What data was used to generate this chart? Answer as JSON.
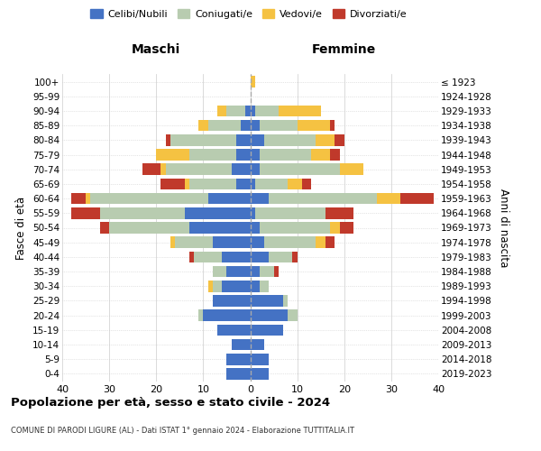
{
  "age_groups": [
    "0-4",
    "5-9",
    "10-14",
    "15-19",
    "20-24",
    "25-29",
    "30-34",
    "35-39",
    "40-44",
    "45-49",
    "50-54",
    "55-59",
    "60-64",
    "65-69",
    "70-74",
    "75-79",
    "80-84",
    "85-89",
    "90-94",
    "95-99",
    "100+"
  ],
  "birth_years": [
    "2019-2023",
    "2014-2018",
    "2009-2013",
    "2004-2008",
    "1999-2003",
    "1994-1998",
    "1989-1993",
    "1984-1988",
    "1979-1983",
    "1974-1978",
    "1969-1973",
    "1964-1968",
    "1959-1963",
    "1954-1958",
    "1949-1953",
    "1944-1948",
    "1939-1943",
    "1934-1938",
    "1929-1933",
    "1924-1928",
    "≤ 1923"
  ],
  "colors": {
    "celibe": "#4472C4",
    "coniugato": "#B8CCB0",
    "vedovo": "#F5C242",
    "divorziato": "#C0392B"
  },
  "males": {
    "celibe": [
      5,
      5,
      4,
      7,
      10,
      8,
      6,
      5,
      6,
      8,
      13,
      14,
      9,
      3,
      4,
      3,
      3,
      2,
      1,
      0,
      0
    ],
    "coniugato": [
      0,
      0,
      0,
      0,
      1,
      0,
      2,
      3,
      6,
      8,
      17,
      18,
      25,
      10,
      14,
      10,
      14,
      7,
      4,
      0,
      0
    ],
    "vedovo": [
      0,
      0,
      0,
      0,
      0,
      0,
      1,
      0,
      0,
      1,
      0,
      0,
      1,
      1,
      1,
      7,
      0,
      2,
      2,
      0,
      0
    ],
    "divorziato": [
      0,
      0,
      0,
      0,
      0,
      0,
      0,
      0,
      1,
      0,
      2,
      6,
      3,
      5,
      4,
      0,
      1,
      0,
      0,
      0,
      0
    ]
  },
  "females": {
    "nubile": [
      4,
      4,
      3,
      7,
      8,
      7,
      2,
      2,
      4,
      3,
      2,
      1,
      4,
      1,
      2,
      2,
      3,
      2,
      1,
      0,
      0
    ],
    "coniugata": [
      0,
      0,
      0,
      0,
      2,
      1,
      2,
      3,
      5,
      11,
      15,
      15,
      23,
      7,
      17,
      11,
      11,
      8,
      5,
      0,
      0
    ],
    "vedova": [
      0,
      0,
      0,
      0,
      0,
      0,
      0,
      0,
      0,
      2,
      2,
      0,
      5,
      3,
      5,
      4,
      4,
      7,
      9,
      0,
      1
    ],
    "divorziata": [
      0,
      0,
      0,
      0,
      0,
      0,
      0,
      1,
      1,
      2,
      3,
      6,
      7,
      2,
      0,
      2,
      2,
      1,
      0,
      0,
      0
    ]
  },
  "xlim": 40,
  "title": "Popolazione per età, sesso e stato civile - 2024",
  "subtitle": "COMUNE DI PARODI LIGURE (AL) - Dati ISTAT 1° gennaio 2024 - Elaborazione TUTTITALIA.IT",
  "ylabel_left": "Fasce di età",
  "ylabel_right": "Anni di nascita",
  "xlabel_left": "Maschi",
  "xlabel_right": "Femmine",
  "background_color": "#ffffff",
  "grid_color": "#cccccc"
}
